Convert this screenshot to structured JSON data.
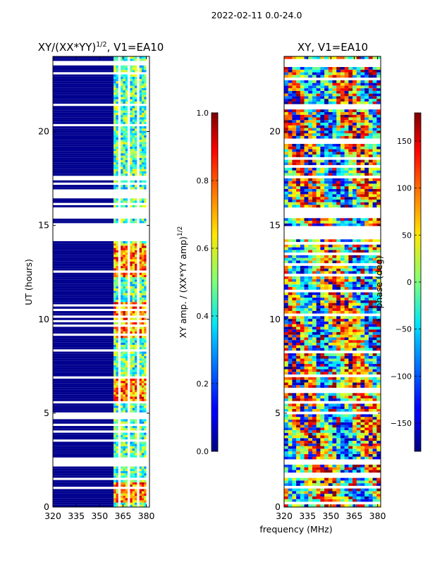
{
  "suptitle": "2022-02-11 0.0-24.0",
  "colors": {
    "flagged": "#00008f",
    "background": "#ffffff",
    "axis": "#000000"
  },
  "chart_data": [
    {
      "type": "heatmap",
      "title_main": "XY/(XX*YY)",
      "title_exp": "1/2",
      "title_tail": ", V1=EA10",
      "xlabel": "",
      "ylabel": "UT (hours)",
      "xlim": [
        320,
        382
      ],
      "ylim": [
        0,
        24
      ],
      "xticks": [
        "320",
        "335",
        "350",
        "365",
        "380"
      ],
      "xtick_values": [
        320,
        335,
        350,
        365,
        380
      ],
      "yticks": [
        "0",
        "5",
        "10",
        "15",
        "20"
      ],
      "ytick_values": [
        0,
        5,
        10,
        15,
        20
      ],
      "flagged_freq_range": [
        320,
        359
      ],
      "valid_freq_range": [
        359,
        380
      ],
      "empty_time_ranges": [
        [
          2.3,
          2.6
        ],
        [
          14.2,
          15.0
        ],
        [
          15.4,
          15.9
        ],
        [
          21.3,
          21.5
        ],
        [
          23.5,
          23.8
        ]
      ],
      "hot_time_ranges": [
        [
          0.2,
          1.2
        ],
        [
          5.5,
          6.9
        ],
        [
          9.0,
          10.8
        ],
        [
          12.2,
          14.0
        ]
      ],
      "colorbar": {
        "label_main": "XY amp. / (XX*YY amp)",
        "label_exp": "1/2",
        "range": [
          0.0,
          1.0
        ],
        "ticks": [
          "0.0",
          "0.2",
          "0.4",
          "0.6",
          "0.8",
          "1.0"
        ],
        "tick_values": [
          0.0,
          0.2,
          0.4,
          0.6,
          0.8,
          1.0
        ]
      }
    },
    {
      "type": "heatmap",
      "title": "XY, V1=EA10",
      "xlabel": "frequency (MHz)",
      "ylabel": "",
      "xlim": [
        320,
        382
      ],
      "ylim": [
        0,
        24
      ],
      "xticks": [
        "320",
        "335",
        "350",
        "365",
        "380"
      ],
      "xtick_values": [
        320,
        335,
        350,
        365,
        380
      ],
      "yticks": [
        "0",
        "5",
        "10",
        "15",
        "20"
      ],
      "ytick_values": [
        0,
        5,
        10,
        15,
        20
      ],
      "empty_time_ranges": [
        [
          2.3,
          2.6
        ],
        [
          14.2,
          15.0
        ],
        [
          15.4,
          15.9
        ],
        [
          21.3,
          21.5
        ],
        [
          23.5,
          23.8
        ]
      ],
      "colorbar": {
        "label": "phase (deg)",
        "range": [
          -180,
          180
        ],
        "ticks": [
          "−150",
          "−100",
          "−50",
          "0",
          "50",
          "100",
          "150"
        ],
        "tick_values": [
          -150,
          -100,
          -50,
          0,
          50,
          100,
          150
        ]
      }
    }
  ]
}
